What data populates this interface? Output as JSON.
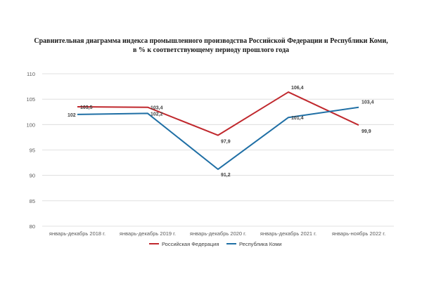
{
  "chart_data": {
    "type": "line",
    "title": {
      "line1": "Сравнительная диаграмма индекса промышленного производства Российской Федерации и Республики Коми,",
      "line2": "в % к соответствующему периоду прошлого года"
    },
    "categories": [
      "январь-декабрь 2018 г.",
      "январь-декабрь 2019 г.",
      "январь-декабрь 2020 г.",
      "январь-декабрь 2021 г.",
      "январь-ноябрь 2022 г."
    ],
    "ylim": [
      80,
      110
    ],
    "yticks": [
      "80",
      "85",
      "90",
      "95",
      "100",
      "105",
      "110"
    ],
    "grid": true,
    "legend": "bottom",
    "series": [
      {
        "name": "Российская Федерация",
        "color": "#c0282d",
        "values": [
          103.5,
          103.4,
          97.9,
          106.4,
          99.9
        ],
        "labels": [
          "103,5",
          "103,4",
          "97,9",
          "106,4",
          "99,9"
        ]
      },
      {
        "name": "Республика Коми",
        "color": "#1f6fa5",
        "values": [
          102,
          102.2,
          91.2,
          101.4,
          103.4
        ],
        "labels": [
          "102",
          "102,2",
          "91,2",
          "101,4",
          "103,4"
        ]
      }
    ]
  }
}
